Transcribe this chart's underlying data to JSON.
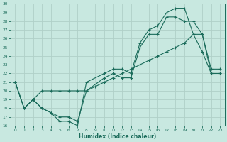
{
  "xlabel": "Humidex (Indice chaleur)",
  "ylabel": "",
  "bg_color": "#c8e8e0",
  "grid_color": "#b0d0c8",
  "line_color": "#1a6b5a",
  "xlim_min": -0.5,
  "xlim_max": 23.5,
  "ylim_min": 16,
  "ylim_max": 30,
  "xticks": [
    0,
    1,
    2,
    3,
    4,
    5,
    6,
    7,
    8,
    9,
    10,
    11,
    12,
    13,
    14,
    15,
    16,
    17,
    18,
    19,
    20,
    21,
    22,
    23
  ],
  "yticks": [
    16,
    17,
    18,
    19,
    20,
    21,
    22,
    23,
    24,
    25,
    26,
    27,
    28,
    29,
    30
  ],
  "line1_x": [
    0,
    1,
    2,
    3,
    4,
    5,
    6,
    7,
    8,
    10,
    11,
    12,
    13,
    14,
    15,
    16,
    17,
    18,
    19,
    20,
    21,
    22,
    23
  ],
  "line1_y": [
    21,
    18,
    19,
    18,
    17.5,
    16.5,
    16.5,
    16,
    21,
    22,
    22.5,
    22.5,
    22,
    25.5,
    27,
    27.5,
    29,
    29.5,
    29.5,
    26.5,
    24.5,
    22,
    22
  ],
  "line2_x": [
    0,
    1,
    2,
    3,
    4,
    5,
    6,
    7,
    8,
    10,
    11,
    12,
    13,
    14,
    15,
    16,
    17,
    18,
    19,
    20,
    21,
    22,
    23
  ],
  "line2_y": [
    21,
    18,
    19,
    18,
    17.5,
    17,
    17,
    16.5,
    20,
    21.5,
    22,
    21.5,
    21.5,
    25,
    26.5,
    26.5,
    28.5,
    28.5,
    28,
    28,
    26.5,
    22,
    22
  ],
  "line3_x": [
    0,
    1,
    2,
    3,
    4,
    5,
    6,
    7,
    8,
    9,
    10,
    11,
    12,
    13,
    14,
    15,
    16,
    17,
    18,
    19,
    20,
    21,
    22,
    23
  ],
  "line3_y": [
    21,
    18,
    19,
    20,
    20,
    20,
    20,
    20,
    20,
    20.5,
    21,
    21.5,
    22,
    22.5,
    23,
    23.5,
    24,
    24.5,
    25,
    25.5,
    26.5,
    26.5,
    22.5,
    22.5
  ]
}
